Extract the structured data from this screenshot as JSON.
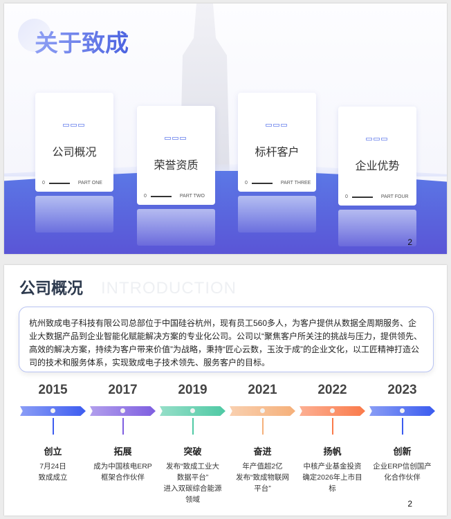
{
  "slide1": {
    "title": "关于致成",
    "page": "2",
    "cards": [
      {
        "title": "公司概况",
        "num": "0",
        "part": "PART ONE"
      },
      {
        "title": "荣誉资质",
        "num": "0",
        "part": "PART TWO"
      },
      {
        "title": "标杆客户",
        "num": "0",
        "part": "PART  THREE"
      },
      {
        "title": "企业优势",
        "num": "0",
        "part": "PART FOUR"
      }
    ]
  },
  "slide2": {
    "title": "公司概况",
    "ghost": "INTRODUCTION",
    "page": "2",
    "intro": "杭州致成电子科技有限公司总部位于中国硅谷杭州，现有员工560多人，为客户提供从数据全周期服务、企业大数据产品到企业智能化赋能解决方案的专业化公司。公司以“聚焦客户所关注的挑战与压力，提供领先、高效的解决方案，持续为客户带来价值”为战略，秉持“匠心云数，玉汝于成”的企业文化，以工匠精神打造公司的技术和服务体系，实现致成电子技术领先、服务客户的目标。",
    "timeline": [
      {
        "year": "2015",
        "label": "创立",
        "desc": "7月24日\n致成成立",
        "color": "#3d5cf0"
      },
      {
        "year": "2017",
        "label": "拓展",
        "desc": "成为中国核电ERP\n框架合作伙伴",
        "color": "#7e5ee0"
      },
      {
        "year": "2019",
        "label": "突破",
        "desc": "发布“致成工业大\n数据平台”\n进入双碳综合能源\n领域",
        "color": "#4fc9a4"
      },
      {
        "year": "2021",
        "label": "奋进",
        "desc": "年产值超2亿\n发布“致成物联网\n平台”",
        "color": "#f5b07a"
      },
      {
        "year": "2022",
        "label": "扬帆",
        "desc": "中核产业基金投资\n确定2026年上市目\n标",
        "color": "#fa7a4a"
      },
      {
        "year": "2023",
        "label": "创新",
        "desc": "企业ERP信创国产\n化合作伙伴",
        "color": "#3a5bef"
      }
    ]
  }
}
